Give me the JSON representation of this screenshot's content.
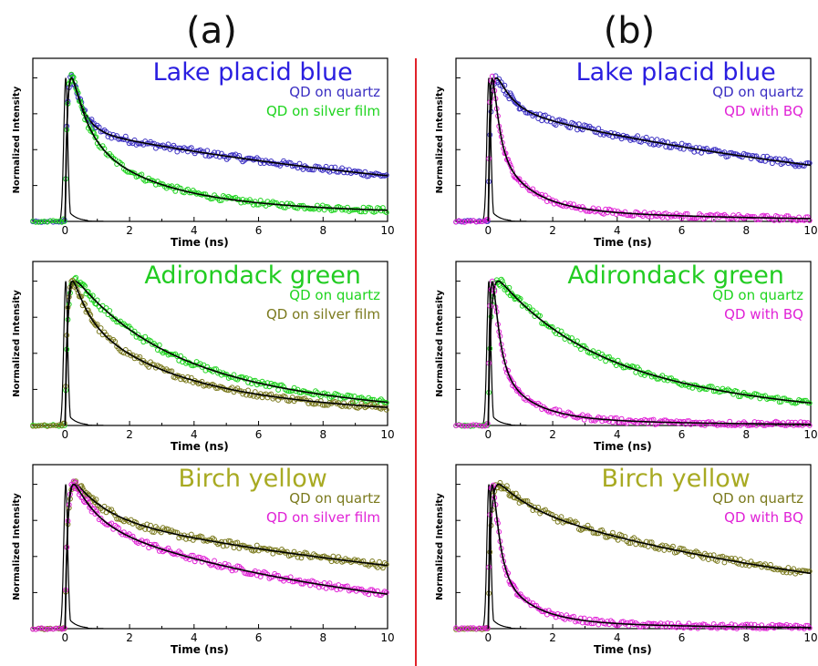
{
  "colors": {
    "divider": "#e0222a",
    "fit": "#000000",
    "irf": "#000000",
    "blue": "#3a2ec2",
    "green": "#1fd41f",
    "olive": "#7b7a1e",
    "magenta": "#e022d6",
    "title_blue": "#2a1ee0",
    "title_green": "#22cc22",
    "title_yellow": "#a8aa22"
  },
  "panels": [
    {
      "label": "(a)"
    },
    {
      "label": "(b)"
    }
  ],
  "chart_data": [
    {
      "id": "a1",
      "type": "scatter",
      "title": "Lake placid blue",
      "title_color": "title_blue",
      "xlabel": "Time (ns)",
      "ylabel": "Normalized Intensity",
      "xlim": [
        -1,
        10
      ],
      "ylim": [
        0,
        1.0
      ],
      "x_ticks": [
        "0",
        "2",
        "4",
        "6",
        "8",
        "10"
      ],
      "series": [
        {
          "name": "QD on quartz",
          "color": "blue",
          "decay": [
            [
              0.55,
              0.35
            ],
            [
              0.45,
              14.0
            ]
          ],
          "peak_t": 0.35
        },
        {
          "name": "QD on silver film",
          "color": "green",
          "decay": [
            [
              0.5,
              0.45
            ],
            [
              0.4,
              2.2
            ],
            [
              0.1,
              15.0
            ]
          ],
          "peak_t": 0.1
        }
      ]
    },
    {
      "id": "a2",
      "type": "scatter",
      "title": "Adirondack green",
      "title_color": "title_green",
      "xlabel": "Time (ns)",
      "ylabel": "Normalized Intensity",
      "xlim": [
        -1,
        10
      ],
      "ylim": [
        0,
        1.0
      ],
      "x_ticks": [
        "0",
        "2",
        "4",
        "6",
        "8",
        "10"
      ],
      "series": [
        {
          "name": "QD on quartz",
          "color": "green",
          "decay": [
            [
              0.6,
              2.6
            ],
            [
              0.4,
              9.0
            ]
          ],
          "peak_t": 0.1
        },
        {
          "name": "QD on silver film",
          "color": "olive",
          "decay": [
            [
              0.35,
              0.45
            ],
            [
              0.45,
              2.6
            ],
            [
              0.2,
              12.0
            ]
          ],
          "peak_t": 0.1
        }
      ]
    },
    {
      "id": "a3",
      "type": "scatter",
      "title": "Birch yellow",
      "title_color": "title_yellow",
      "xlabel": "Time (ns)",
      "ylabel": "Normalized Intensity",
      "xlim": [
        -1,
        10
      ],
      "ylim": [
        0,
        1.0
      ],
      "x_ticks": [
        "0",
        "2",
        "4",
        "6",
        "8",
        "10"
      ],
      "series": [
        {
          "name": "QD on quartz",
          "color": "olive",
          "decay": [
            [
              0.3,
              1.0
            ],
            [
              0.7,
              17.0
            ]
          ],
          "peak_t": 0.25
        },
        {
          "name": "QD on silver film",
          "color": "magenta",
          "decay": [
            [
              0.35,
              0.7
            ],
            [
              0.65,
              8.5
            ]
          ],
          "peak_t": 0.15
        }
      ]
    },
    {
      "id": "b1",
      "type": "scatter",
      "title": "Lake placid blue",
      "title_color": "title_blue",
      "xlabel": "Time (ns)",
      "ylabel": "Normalized Intensity",
      "xlim": [
        -1,
        10
      ],
      "ylim": [
        0,
        1.0
      ],
      "x_ticks": [
        "0",
        "2",
        "4",
        "6",
        "8",
        "10"
      ],
      "series": [
        {
          "name": "QD on quartz",
          "color": "blue",
          "decay": [
            [
              0.35,
              0.5
            ],
            [
              0.65,
              14.0
            ]
          ],
          "peak_t": 0.35
        },
        {
          "name": "QD with BQ",
          "color": "magenta",
          "decay": [
            [
              0.7,
              0.18
            ],
            [
              0.25,
              1.0
            ],
            [
              0.05,
              6.0
            ]
          ],
          "peak_t": 0.05
        }
      ]
    },
    {
      "id": "b2",
      "type": "scatter",
      "title": "Adirondack green",
      "title_color": "title_green",
      "xlabel": "Time (ns)",
      "ylabel": "Normalized Intensity",
      "xlim": [
        -1,
        10
      ],
      "ylim": [
        0,
        1.0
      ],
      "x_ticks": [
        "0",
        "2",
        "4",
        "6",
        "8",
        "10"
      ],
      "series": [
        {
          "name": "QD on quartz",
          "color": "green",
          "decay": [
            [
              0.55,
              2.6
            ],
            [
              0.45,
              8.0
            ]
          ],
          "peak_t": 0.1
        },
        {
          "name": "QD with BQ",
          "color": "magenta",
          "decay": [
            [
              0.75,
              0.2
            ],
            [
              0.22,
              1.0
            ],
            [
              0.03,
              5.0
            ]
          ],
          "peak_t": 0.05
        }
      ]
    },
    {
      "id": "b3",
      "type": "scatter",
      "title": "Birch yellow",
      "title_color": "title_yellow",
      "xlabel": "Time (ns)",
      "ylabel": "Normalized Intensity",
      "xlim": [
        -1,
        10
      ],
      "ylim": [
        0,
        1.0
      ],
      "x_ticks": [
        "0",
        "2",
        "4",
        "6",
        "8",
        "10"
      ],
      "series": [
        {
          "name": "QD on quartz",
          "color": "olive",
          "decay": [
            [
              0.2,
              1.0
            ],
            [
              0.8,
              12.0
            ]
          ],
          "peak_t": 0.1
        },
        {
          "name": "QD with BQ",
          "color": "magenta",
          "decay": [
            [
              0.75,
              0.2
            ],
            [
              0.22,
              1.0
            ],
            [
              0.03,
              5.0
            ]
          ],
          "peak_t": 0.05
        }
      ]
    }
  ]
}
